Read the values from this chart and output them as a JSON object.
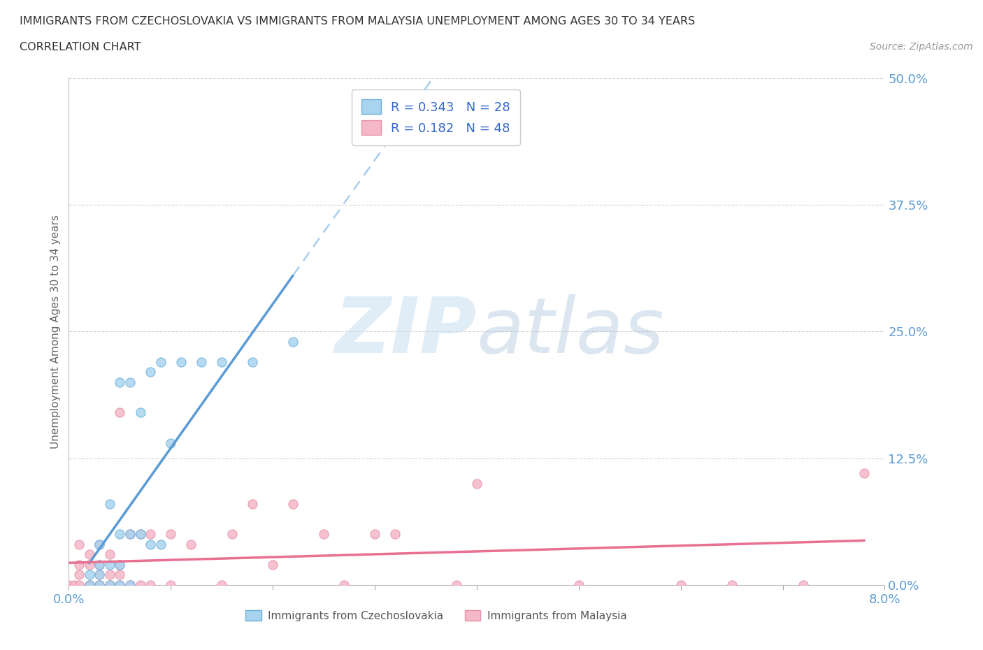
{
  "title_line1": "IMMIGRANTS FROM CZECHOSLOVAKIA VS IMMIGRANTS FROM MALAYSIA UNEMPLOYMENT AMONG AGES 30 TO 34 YEARS",
  "title_line2": "CORRELATION CHART",
  "source": "Source: ZipAtlas.com",
  "ylabel": "Unemployment Among Ages 30 to 34 years",
  "xlim": [
    0.0,
    0.08
  ],
  "ylim": [
    0.0,
    0.5
  ],
  "ytick_vals": [
    0.0,
    0.125,
    0.25,
    0.375,
    0.5
  ],
  "ytick_labels": [
    "0.0%",
    "12.5%",
    "25.0%",
    "37.5%",
    "50.0%"
  ],
  "xtick_vals": [
    0.0,
    0.01,
    0.02,
    0.03,
    0.04,
    0.05,
    0.06,
    0.07,
    0.08
  ],
  "xtick_labels": [
    "0.0%",
    "",
    "",
    "",
    "",
    "",
    "",
    "",
    "8.0%"
  ],
  "legend_r1": "R = 0.343",
  "legend_n1": "N = 28",
  "legend_r2": "R = 0.182",
  "legend_n2": "N = 48",
  "color_czech": "#A8D4F0",
  "color_czech_edge": "#6EB0D8",
  "color_malaysia": "#F5B8C8",
  "color_malaysia_edge": "#E890A8",
  "color_czech_line": "#5B9BD5",
  "color_malaysia_line": "#E87090",
  "color_czech_dashed": "#AACCEE",
  "watermark_zip": "ZIP",
  "watermark_atlas": "atlas",
  "czech_x": [
    0.002,
    0.002,
    0.003,
    0.003,
    0.003,
    0.003,
    0.004,
    0.004,
    0.004,
    0.005,
    0.005,
    0.005,
    0.005,
    0.006,
    0.006,
    0.006,
    0.007,
    0.007,
    0.008,
    0.008,
    0.009,
    0.009,
    0.01,
    0.011,
    0.013,
    0.015,
    0.018,
    0.022
  ],
  "czech_y": [
    0.0,
    0.01,
    0.0,
    0.01,
    0.02,
    0.04,
    0.0,
    0.02,
    0.08,
    0.0,
    0.02,
    0.05,
    0.2,
    0.0,
    0.05,
    0.2,
    0.05,
    0.17,
    0.04,
    0.21,
    0.04,
    0.22,
    0.14,
    0.22,
    0.22,
    0.22,
    0.22,
    0.24
  ],
  "malaysia_x": [
    0.0,
    0.0005,
    0.001,
    0.001,
    0.001,
    0.001,
    0.002,
    0.002,
    0.002,
    0.002,
    0.003,
    0.003,
    0.003,
    0.003,
    0.003,
    0.004,
    0.004,
    0.004,
    0.004,
    0.005,
    0.005,
    0.005,
    0.005,
    0.006,
    0.006,
    0.007,
    0.007,
    0.008,
    0.008,
    0.01,
    0.01,
    0.012,
    0.015,
    0.016,
    0.018,
    0.02,
    0.022,
    0.025,
    0.027,
    0.03,
    0.032,
    0.038,
    0.04,
    0.05,
    0.06,
    0.065,
    0.072,
    0.078
  ],
  "malaysia_y": [
    0.0,
    0.0,
    0.0,
    0.01,
    0.02,
    0.04,
    0.0,
    0.0,
    0.02,
    0.03,
    0.0,
    0.0,
    0.01,
    0.02,
    0.04,
    0.0,
    0.0,
    0.01,
    0.03,
    0.0,
    0.01,
    0.02,
    0.17,
    0.0,
    0.05,
    0.0,
    0.05,
    0.0,
    0.05,
    0.0,
    0.05,
    0.04,
    0.0,
    0.05,
    0.08,
    0.02,
    0.08,
    0.05,
    0.0,
    0.05,
    0.05,
    0.0,
    0.1,
    0.0,
    0.0,
    0.0,
    0.0,
    0.11
  ]
}
